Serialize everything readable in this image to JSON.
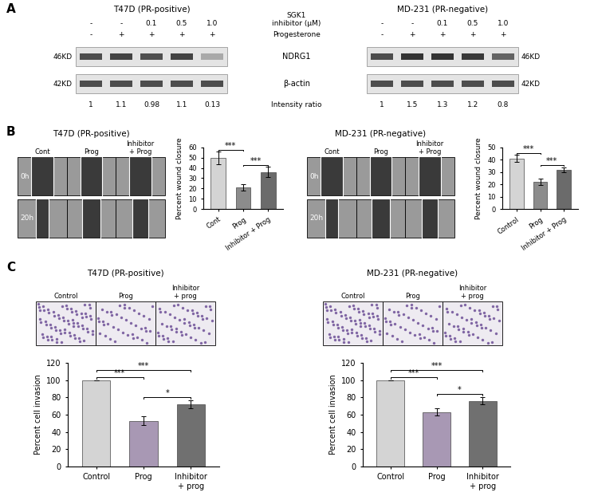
{
  "panel_labels": [
    "A",
    "B",
    "C"
  ],
  "blots": {
    "inhibitor_label": [
      "SGK1",
      "inhibitor (μM)"
    ],
    "progesterone_label": "Progesterone",
    "ratio_label": "Intensity ratio",
    "lanes": {
      "inhibitor": [
        "-",
        "-",
        "0.1",
        "0.5",
        "1.0"
      ],
      "progesterone": [
        "-",
        "+",
        "+",
        "+",
        "+"
      ]
    },
    "bands": [
      {
        "name": "NDRG1",
        "size": "46KD"
      },
      {
        "name": "β-actin",
        "size": "42KD"
      }
    ],
    "cell_lines": [
      {
        "title": "T47D (PR-positive)",
        "intensity_ratio": [
          1,
          1.1,
          0.98,
          1.1,
          0.13
        ]
      },
      {
        "title": "MD-231 (PR-negative)",
        "intensity_ratio": [
          1,
          1.5,
          1.3,
          1.2,
          0.8
        ]
      }
    ]
  },
  "wound_images": [
    {
      "title": "T47D (PR-positive)",
      "columns": [
        "Cont",
        "Prog",
        "Inhibitor + Prog"
      ],
      "rows": [
        "0h",
        "20h"
      ]
    },
    {
      "title": "MD-231 (PR-negative)",
      "columns": [
        "Cont",
        "Prog",
        "Inhibitor + Prog"
      ],
      "rows": [
        "0h",
        "20h"
      ]
    }
  ],
  "invasion_images": [
    {
      "title": "T47D (PR-positive)",
      "columns": [
        "Control",
        "Prog",
        "Inhibitor + prog"
      ]
    },
    {
      "title": "MD-231 (PR-negative)",
      "columns": [
        "Control",
        "Prog",
        "Inhibitor + prog"
      ]
    }
  ],
  "chart_data": [
    {
      "type": "bar",
      "ylabel": "Percent wound closure",
      "categories": [
        "Cont",
        "Prog",
        "Inhibitor + Prog"
      ],
      "values": [
        50,
        21,
        36
      ],
      "errors": [
        6,
        3,
        5
      ],
      "colors": [
        "#d4d4d4",
        "#8c8c8c",
        "#6b6b6b"
      ],
      "ylim": [
        0,
        60
      ],
      "yticks": [
        0,
        10,
        20,
        30,
        40,
        50,
        60
      ],
      "significance": [
        {
          "from": 0,
          "to": 1,
          "label": "***"
        },
        {
          "from": 1,
          "to": 2,
          "label": "***"
        }
      ]
    },
    {
      "type": "bar",
      "ylabel": "Percent wound closure",
      "categories": [
        "Control",
        "Prog",
        "Inhibitor + Prog"
      ],
      "values": [
        41,
        22,
        32
      ],
      "errors": [
        3,
        2.5,
        2
      ],
      "colors": [
        "#d4d4d4",
        "#8c8c8c",
        "#6b6b6b"
      ],
      "ylim": [
        0,
        50
      ],
      "yticks": [
        0,
        10,
        20,
        30,
        40,
        50
      ],
      "significance": [
        {
          "from": 0,
          "to": 1,
          "label": "***"
        },
        {
          "from": 1,
          "to": 2,
          "label": "***"
        }
      ]
    },
    {
      "type": "bar",
      "ylabel": "Percent cell invasion",
      "categories": [
        "Control",
        "Prog",
        "Inhibitor + prog"
      ],
      "values": [
        100,
        53,
        72
      ],
      "errors": [
        0,
        5,
        5
      ],
      "colors": [
        "#d4d4d4",
        "#a898b4",
        "#707070"
      ],
      "ylim": [
        0,
        120
      ],
      "yticks": [
        0,
        20,
        40,
        60,
        80,
        100,
        120
      ],
      "significance": [
        {
          "from": 0,
          "to": 1,
          "label": "***"
        },
        {
          "from": 1,
          "to": 2,
          "label": "*"
        },
        {
          "from": 0,
          "to": 2,
          "label": "***"
        }
      ]
    },
    {
      "type": "bar",
      "ylabel": "Percent cell invasion",
      "categories": [
        "Control",
        "Prog",
        "Inhibitor + prog"
      ],
      "values": [
        100,
        63,
        76
      ],
      "errors": [
        0,
        4,
        4
      ],
      "colors": [
        "#d4d4d4",
        "#a898b4",
        "#707070"
      ],
      "ylim": [
        0,
        120
      ],
      "yticks": [
        0,
        20,
        40,
        60,
        80,
        100,
        120
      ],
      "significance": [
        {
          "from": 0,
          "to": 1,
          "label": "***"
        },
        {
          "from": 1,
          "to": 2,
          "label": "*"
        },
        {
          "from": 0,
          "to": 2,
          "label": "***"
        }
      ]
    }
  ]
}
